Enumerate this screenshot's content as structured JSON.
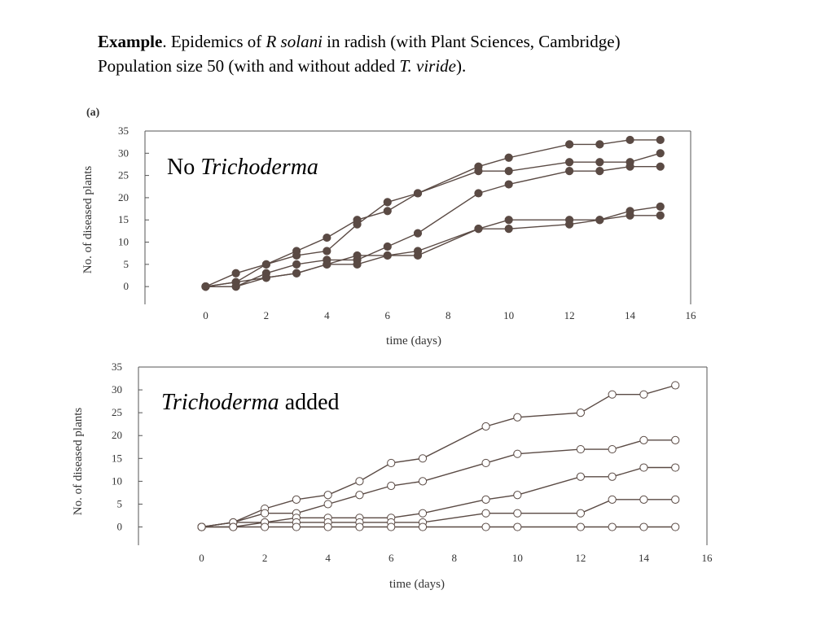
{
  "heading": {
    "line1_bold": "Example",
    "line1_after_bold": ".  Epidemics of ",
    "line1_italic": "R solani",
    "line1_rest": " in radish (with Plant Sciences, Cambridge)",
    "line2_start": "Population size 50 (with and without added ",
    "line2_italic": "T. viride",
    "line2_end": ")."
  },
  "chart_data": [
    {
      "type": "line",
      "panel_label": "(a)",
      "overlay_plain": "No ",
      "overlay_italic": "Trichoderma",
      "overlay_after": "",
      "xlabel": "time (days)",
      "ylabel": "No. of diseased plants",
      "xlim": [
        -2,
        16
      ],
      "ylim": [
        -4,
        35
      ],
      "xticks": [
        0,
        2,
        4,
        6,
        8,
        10,
        12,
        14,
        16
      ],
      "yticks": [
        0,
        5,
        10,
        15,
        20,
        25,
        30,
        35
      ],
      "marker": "filled",
      "marker_color": "#5a4a44",
      "line_color": "#5a4a44",
      "grid": false,
      "series": [
        {
          "x": [
            0,
            1,
            2,
            3,
            4,
            5,
            6,
            7,
            9,
            10,
            12,
            13,
            14,
            15
          ],
          "y": [
            0,
            3,
            5,
            8,
            11,
            15,
            17,
            21,
            27,
            29,
            32,
            32,
            33,
            33
          ]
        },
        {
          "x": [
            0,
            1,
            2,
            3,
            4,
            5,
            6,
            7,
            9,
            10,
            12,
            13,
            14,
            15
          ],
          "y": [
            0,
            1,
            5,
            7,
            8,
            14,
            19,
            21,
            26,
            26,
            28,
            28,
            28,
            30
          ]
        },
        {
          "x": [
            0,
            1,
            2,
            3,
            4,
            5,
            6,
            7,
            9,
            10,
            12,
            13,
            14,
            15
          ],
          "y": [
            0,
            0,
            3,
            5,
            6,
            6,
            9,
            12,
            21,
            23,
            26,
            26,
            27,
            27
          ]
        },
        {
          "x": [
            0,
            1,
            2,
            3,
            4,
            5,
            6,
            7,
            9,
            10,
            12,
            13,
            14,
            15
          ],
          "y": [
            0,
            1,
            2,
            3,
            5,
            7,
            7,
            8,
            13,
            15,
            15,
            15,
            17,
            18
          ]
        },
        {
          "x": [
            0,
            1,
            2,
            3,
            4,
            5,
            6,
            7,
            9,
            10,
            12,
            13,
            14,
            15
          ],
          "y": [
            0,
            0,
            2,
            3,
            5,
            5,
            7,
            7,
            13,
            13,
            14,
            15,
            16,
            16
          ]
        }
      ]
    },
    {
      "type": "line",
      "overlay_plain": "",
      "overlay_italic": "Trichoderma",
      "overlay_after": " added",
      "xlabel": "time (days)",
      "ylabel": "No. of diseased plants",
      "xlim": [
        -2,
        16
      ],
      "ylim": [
        -4,
        35
      ],
      "xticks": [
        0,
        2,
        4,
        6,
        8,
        10,
        12,
        14,
        16
      ],
      "yticks": [
        0,
        5,
        10,
        15,
        20,
        25,
        30,
        35
      ],
      "marker": "open",
      "marker_color": "#5a4a44",
      "line_color": "#5a4a44",
      "grid": false,
      "series": [
        {
          "x": [
            0,
            1,
            2,
            3,
            4,
            5,
            6,
            7,
            9,
            10,
            12,
            13,
            14,
            15
          ],
          "y": [
            0,
            1,
            4,
            6,
            7,
            10,
            14,
            15,
            22,
            24,
            25,
            29,
            29,
            31
          ]
        },
        {
          "x": [
            0,
            1,
            2,
            3,
            4,
            5,
            6,
            7,
            9,
            10,
            12,
            13,
            14,
            15
          ],
          "y": [
            0,
            1,
            3,
            3,
            5,
            7,
            9,
            10,
            14,
            16,
            17,
            17,
            19,
            19
          ]
        },
        {
          "x": [
            0,
            1,
            2,
            3,
            4,
            5,
            6,
            7,
            9,
            10,
            12,
            13,
            14,
            15
          ],
          "y": [
            0,
            1,
            1,
            2,
            2,
            2,
            2,
            3,
            6,
            7,
            11,
            11,
            13,
            13
          ]
        },
        {
          "x": [
            0,
            1,
            2,
            3,
            4,
            5,
            6,
            7,
            9,
            10,
            12,
            13,
            14,
            15
          ],
          "y": [
            0,
            0,
            1,
            1,
            1,
            1,
            1,
            1,
            3,
            3,
            3,
            6,
            6,
            6
          ]
        },
        {
          "x": [
            0,
            1,
            2,
            3,
            4,
            5,
            6,
            7,
            9,
            10,
            12,
            13,
            14,
            15
          ],
          "y": [
            0,
            0,
            0,
            0,
            0,
            0,
            0,
            0,
            0,
            0,
            0,
            0,
            0,
            0
          ]
        }
      ]
    }
  ]
}
